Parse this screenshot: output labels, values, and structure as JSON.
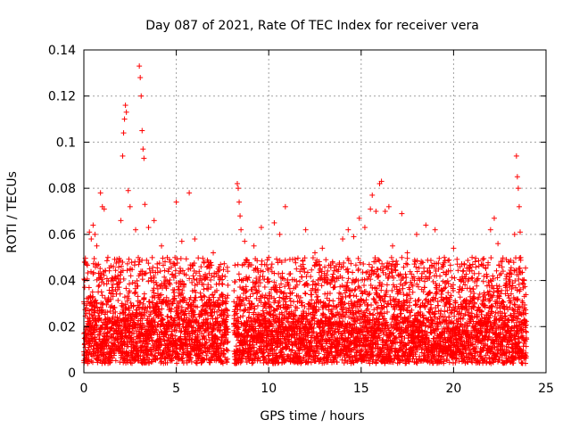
{
  "chart_data": {
    "type": "scatter",
    "title": "Day 087 of 2021, Rate Of TEC Index for receiver vera",
    "xlabel": "GPS time / hours",
    "ylabel": "ROTI / TECUs",
    "xlim": [
      0,
      25
    ],
    "ylim": [
      0,
      0.14
    ],
    "xticks": [
      0,
      5,
      10,
      15,
      20,
      25
    ],
    "xtick_labels": [
      "0",
      "5",
      "10",
      "15",
      "20",
      "25"
    ],
    "yticks": [
      0,
      0.02,
      0.04,
      0.06,
      0.08,
      0.1,
      0.12,
      0.14
    ],
    "ytick_labels": [
      "0",
      "0.02",
      "0.04",
      "0.06",
      "0.08",
      "0.1",
      "0.12",
      "0.14"
    ],
    "grid": true,
    "marker": "plus",
    "color": "#ff0000",
    "series": [
      {
        "name": "ROTI",
        "points": [
          [
            0.3,
            0.061
          ],
          [
            0.4,
            0.058
          ],
          [
            0.5,
            0.064
          ],
          [
            0.6,
            0.06
          ],
          [
            0.7,
            0.055
          ],
          [
            0.9,
            0.078
          ],
          [
            1.0,
            0.072
          ],
          [
            1.1,
            0.071
          ],
          [
            1.3,
            0.05
          ],
          [
            1.6,
            0.046
          ],
          [
            2.0,
            0.066
          ],
          [
            2.1,
            0.094
          ],
          [
            2.15,
            0.104
          ],
          [
            2.2,
            0.11
          ],
          [
            2.25,
            0.116
          ],
          [
            2.3,
            0.113
          ],
          [
            2.4,
            0.079
          ],
          [
            2.5,
            0.072
          ],
          [
            2.8,
            0.062
          ],
          [
            3.0,
            0.133
          ],
          [
            3.05,
            0.128
          ],
          [
            3.1,
            0.12
          ],
          [
            3.15,
            0.105
          ],
          [
            3.2,
            0.097
          ],
          [
            3.25,
            0.093
          ],
          [
            3.3,
            0.073
          ],
          [
            3.5,
            0.063
          ],
          [
            3.8,
            0.066
          ],
          [
            4.2,
            0.055
          ],
          [
            4.6,
            0.045
          ],
          [
            5.0,
            0.074
          ],
          [
            5.3,
            0.057
          ],
          [
            5.7,
            0.078
          ],
          [
            6.0,
            0.058
          ],
          [
            6.5,
            0.048
          ],
          [
            7.0,
            0.052
          ],
          [
            7.5,
            0.042
          ],
          [
            8.3,
            0.082
          ],
          [
            8.35,
            0.08
          ],
          [
            8.4,
            0.074
          ],
          [
            8.45,
            0.068
          ],
          [
            8.5,
            0.062
          ],
          [
            8.7,
            0.057
          ],
          [
            9.2,
            0.055
          ],
          [
            9.6,
            0.063
          ],
          [
            10.0,
            0.05
          ],
          [
            10.3,
            0.065
          ],
          [
            10.6,
            0.06
          ],
          [
            10.9,
            0.072
          ],
          [
            11.5,
            0.045
          ],
          [
            12.0,
            0.062
          ],
          [
            12.5,
            0.052
          ],
          [
            12.9,
            0.054
          ],
          [
            13.4,
            0.04
          ],
          [
            14.0,
            0.058
          ],
          [
            14.3,
            0.062
          ],
          [
            14.6,
            0.059
          ],
          [
            14.9,
            0.067
          ],
          [
            15.2,
            0.063
          ],
          [
            15.5,
            0.071
          ],
          [
            15.6,
            0.077
          ],
          [
            15.8,
            0.07
          ],
          [
            16.0,
            0.082
          ],
          [
            16.1,
            0.083
          ],
          [
            16.3,
            0.07
          ],
          [
            16.5,
            0.072
          ],
          [
            16.7,
            0.055
          ],
          [
            17.2,
            0.069
          ],
          [
            17.5,
            0.052
          ],
          [
            18.0,
            0.06
          ],
          [
            18.5,
            0.064
          ],
          [
            19.0,
            0.062
          ],
          [
            19.5,
            0.05
          ],
          [
            20.0,
            0.054
          ],
          [
            20.5,
            0.044
          ],
          [
            21.0,
            0.05
          ],
          [
            21.5,
            0.047
          ],
          [
            22.0,
            0.062
          ],
          [
            22.2,
            0.067
          ],
          [
            22.4,
            0.056
          ],
          [
            23.0,
            0.048
          ],
          [
            23.3,
            0.06
          ],
          [
            23.4,
            0.094
          ],
          [
            23.45,
            0.085
          ],
          [
            23.5,
            0.08
          ],
          [
            23.55,
            0.072
          ],
          [
            23.6,
            0.061
          ],
          [
            23.8,
            0.04
          ]
        ],
        "dense_band": {
          "x_start": 0,
          "x_end": 23.95,
          "gap": [
            7.8,
            8.1
          ],
          "y_floor": 0.004,
          "y_core_top": 0.035,
          "y_spread_top": 0.05
        }
      }
    ]
  }
}
